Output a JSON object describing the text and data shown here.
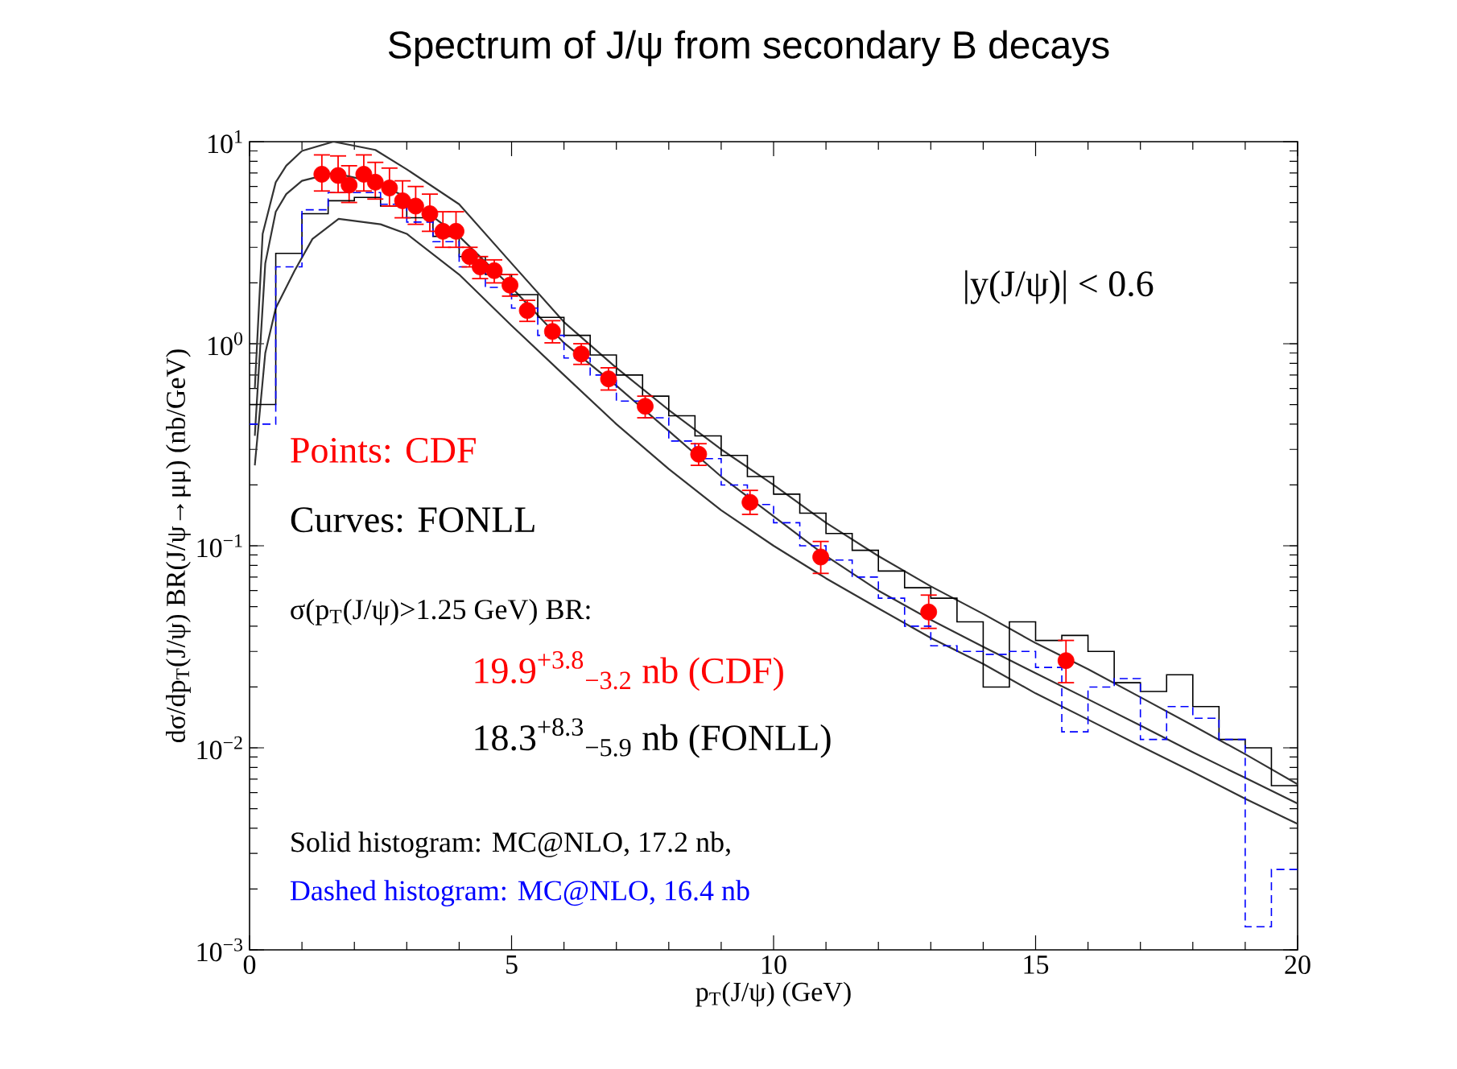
{
  "chart_data": {
    "type": "line",
    "title": "Spectrum of J/ψ from secondary B decays",
    "xlabel": "p$_{T}$(J/ψ) (GeV)",
    "ylabel": "dσ/dp$_{T}$(J/ψ) BR(J/ψ→μμ) (nb/GeV)",
    "log": "y",
    "xlim": [
      0,
      20
    ],
    "ylim": [
      0.001,
      10
    ],
    "xticks": [
      0,
      5,
      10,
      15,
      20
    ],
    "yticks": [
      {
        "value": 0.001,
        "label": "10$^{−3}$"
      },
      {
        "value": 0.01,
        "label": "10$^{−2}$"
      },
      {
        "value": 0.1,
        "label": "10$^{−1}$"
      },
      {
        "value": 1,
        "label": "10$^{0}$"
      },
      {
        "value": 10,
        "label": "10$^{1}$"
      }
    ],
    "annotations": [
      "|y(J/ψ)| < 0.6",
      "Points: CDF",
      "Curves: FONLL",
      "σ(p$_{T}$(J/ψ)>1.25 GeV) BR:",
      "19.9$^{+3.8}$$_{−3.2}$ nb (CDF)",
      "18.3$^{+8.3}$$_{−5.9}$ nb (FONLL)",
      "Solid histogram: MC@NLO, 17.2 nb,",
      "Dashed histogram: MC@NLO, 16.4 nb"
    ],
    "series": [
      {
        "type": "scatter",
        "color": "#ff0000",
        "marker": "circle",
        "x": [
          1.38,
          1.69,
          1.9,
          2.18,
          2.4,
          2.67,
          2.92,
          3.17,
          3.44,
          3.69,
          3.94,
          4.2,
          4.4,
          4.67,
          4.97,
          5.3,
          5.78,
          6.33,
          6.85,
          7.55,
          8.57,
          9.55,
          10.9,
          12.96,
          15.58
        ],
        "values": [
          6.9,
          6.8,
          6.1,
          6.9,
          6.3,
          5.9,
          5.1,
          4.8,
          4.4,
          3.6,
          3.6,
          2.7,
          2.4,
          2.3,
          1.95,
          1.46,
          1.15,
          0.89,
          0.67,
          0.49,
          0.284,
          0.164,
          0.088,
          0.047,
          0.027
        ],
        "errors": [
          [
            5.7,
            8.6
          ],
          [
            5.6,
            8.5
          ],
          [
            5.0,
            7.6
          ],
          [
            5.7,
            8.6
          ],
          [
            5.2,
            7.9
          ],
          [
            4.8,
            7.4
          ],
          [
            4.2,
            6.4
          ],
          [
            3.9,
            6.0
          ],
          [
            3.6,
            5.5
          ],
          [
            3.0,
            4.5
          ],
          [
            3.0,
            4.5
          ],
          [
            2.4,
            3.0
          ],
          [
            2.1,
            2.7
          ],
          [
            2.0,
            2.6
          ],
          [
            1.72,
            2.2
          ],
          [
            1.29,
            1.64
          ],
          [
            1.01,
            1.3
          ],
          [
            0.79,
            1.0
          ],
          [
            0.59,
            0.76
          ],
          [
            0.43,
            0.55
          ],
          [
            0.25,
            0.32
          ],
          [
            0.143,
            0.188
          ],
          [
            0.073,
            0.105
          ],
          [
            0.039,
            0.057
          ],
          [
            0.021,
            0.034
          ]
        ]
      },
      {
        "color": "#333333",
        "x": [
          0.1,
          0.25,
          0.5,
          0.7,
          1.0,
          1.6,
          2.4,
          3,
          4,
          5,
          6,
          7,
          8,
          9,
          10,
          11,
          12,
          13,
          14,
          15,
          16,
          17,
          18,
          19,
          20
        ],
        "values": [
          0.6,
          3.5,
          6.3,
          7.6,
          9.0,
          10,
          9.1,
          7.3,
          4.9,
          2.5,
          1.28,
          0.76,
          0.47,
          0.3,
          0.2,
          0.13,
          0.089,
          0.063,
          0.046,
          0.033,
          0.0245,
          0.0178,
          0.0129,
          0.0093,
          0.0066
        ]
      },
      {
        "color": "#333333",
        "x": [
          0.1,
          0.3,
          0.5,
          0.7,
          1.0,
          1.6,
          2.4,
          3,
          4,
          5,
          6,
          7,
          8,
          9,
          10,
          11,
          12,
          13,
          14,
          15,
          16,
          17,
          18,
          19,
          20
        ],
        "values": [
          0.35,
          2.5,
          4.5,
          5.5,
          6.4,
          7.0,
          6.3,
          5.3,
          3.4,
          1.9,
          1.01,
          0.62,
          0.37,
          0.22,
          0.14,
          0.089,
          0.06,
          0.043,
          0.0316,
          0.0234,
          0.0174,
          0.0129,
          0.0095,
          0.0071,
          0.0053
        ]
      },
      {
        "color": "#333333",
        "x": [
          0.1,
          0.3,
          0.5,
          0.86,
          1.2,
          1.7,
          2.5,
          3,
          4,
          5,
          6,
          7,
          8,
          9,
          10,
          11,
          12,
          13,
          14,
          15,
          16,
          17,
          18,
          19,
          20
        ],
        "values": [
          0.25,
          0.9,
          1.5,
          2.3,
          3.3,
          4.15,
          3.9,
          3.5,
          2.2,
          1.23,
          0.7,
          0.4,
          0.24,
          0.15,
          0.1,
          0.069,
          0.049,
          0.035,
          0.026,
          0.0186,
          0.0138,
          0.0102,
          0.0076,
          0.0056,
          0.0042
        ]
      },
      {
        "type": "histogram",
        "color": "#000000",
        "line_style": "solid",
        "bins": [
          0,
          0.5,
          1,
          1.5,
          2,
          2.5,
          3,
          3.5,
          4,
          4.5,
          5,
          5.5,
          6,
          6.5,
          7,
          7.5,
          8,
          8.5,
          9,
          9.5,
          10,
          10.5,
          11,
          11.5,
          12,
          12.5,
          13,
          13.5,
          14,
          14.5,
          15,
          15.5,
          16,
          16.5,
          17,
          17.5,
          18,
          18.5,
          19,
          19.5,
          20
        ],
        "values": [
          0.5,
          2.8,
          4.4,
          5.1,
          5.3,
          4.8,
          4.2,
          3.4,
          2.7,
          2.2,
          1.75,
          1.35,
          1.1,
          0.88,
          0.7,
          0.55,
          0.44,
          0.35,
          0.28,
          0.22,
          0.18,
          0.145,
          0.115,
          0.095,
          0.075,
          0.062,
          0.055,
          0.042,
          0.02,
          0.042,
          0.034,
          0.036,
          0.03,
          0.021,
          0.019,
          0.023,
          0.016,
          0.011,
          0.01,
          0.0065
        ]
      },
      {
        "type": "histogram",
        "color": "#0000ff",
        "line_style": "dashed",
        "bins": [
          0,
          0.5,
          1,
          1.5,
          2,
          2.5,
          3,
          3.5,
          4,
          4.5,
          5,
          5.5,
          6,
          6.5,
          7,
          7.5,
          8,
          8.5,
          9,
          9.5,
          10,
          10.5,
          11,
          11.5,
          12,
          12.5,
          13,
          13.5,
          14,
          14.5,
          15,
          15.5,
          16,
          16.5,
          17,
          17.5,
          18,
          18.5,
          19,
          19.5,
          20
        ],
        "values": [
          0.4,
          2.4,
          4.6,
          5.6,
          5.6,
          4.9,
          4.0,
          3.2,
          2.4,
          1.9,
          1.5,
          1.1,
          0.85,
          0.7,
          0.52,
          0.43,
          0.33,
          0.27,
          0.2,
          0.16,
          0.13,
          0.1,
          0.085,
          0.07,
          0.055,
          0.04,
          0.032,
          0.03,
          0.029,
          0.03,
          0.025,
          0.012,
          0.02,
          0.022,
          0.011,
          0.016,
          0.014,
          0.011,
          0.0013,
          0.0025
        ]
      }
    ]
  }
}
